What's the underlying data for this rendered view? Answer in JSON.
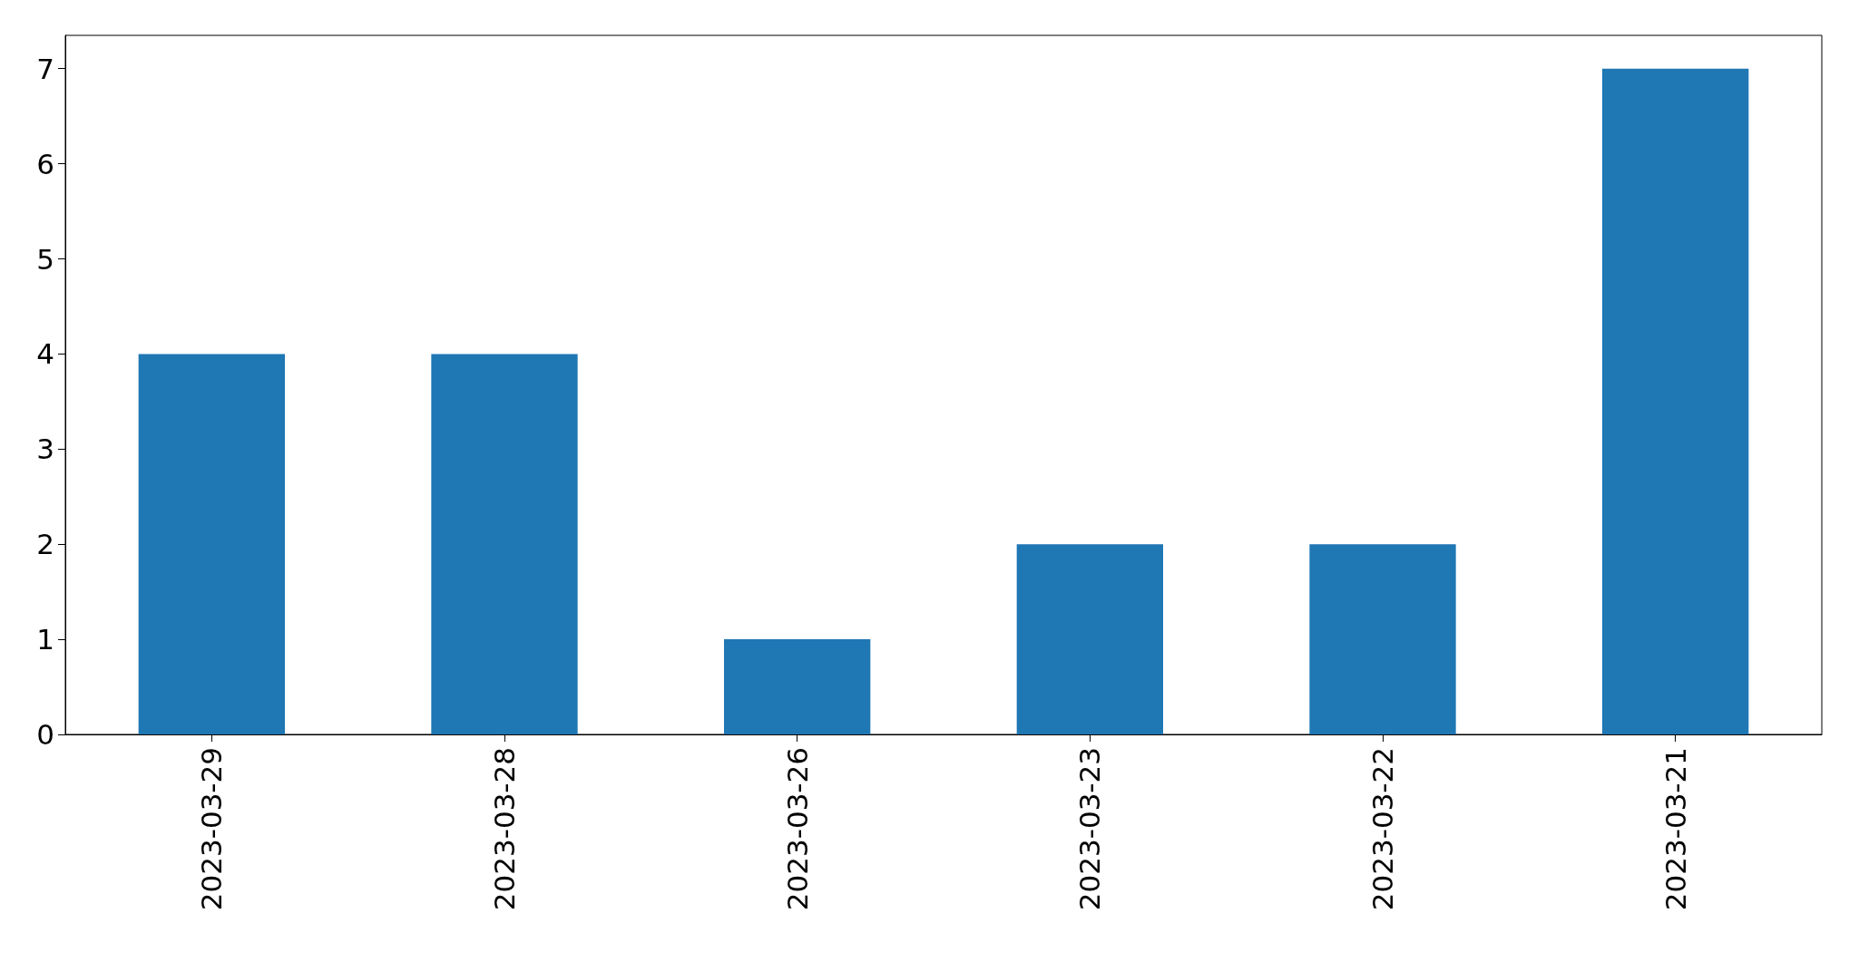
{
  "chart_data": {
    "type": "bar",
    "categories": [
      "2023-03-29",
      "2023-03-28",
      "2023-03-26",
      "2023-03-23",
      "2023-03-22",
      "2023-03-21"
    ],
    "values": [
      4,
      4,
      1,
      2,
      2,
      7
    ],
    "color": "#1f77b4",
    "ylim": [
      0,
      7.35
    ],
    "yticks": [
      0,
      1,
      2,
      3,
      4,
      5,
      6,
      7
    ],
    "grid": false
  }
}
